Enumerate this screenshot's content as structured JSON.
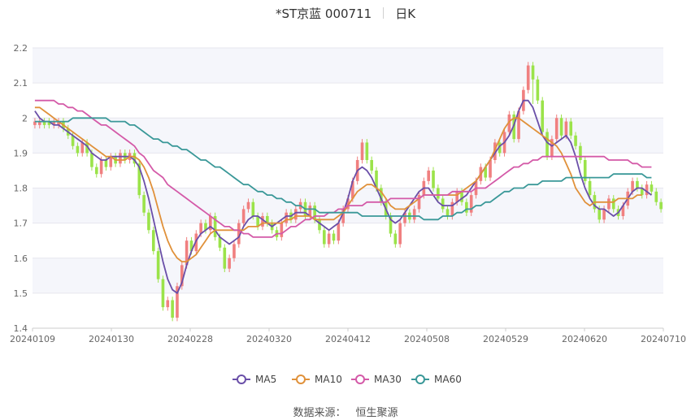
{
  "header": {
    "title": "*ST京蓝 000711",
    "period": "日K"
  },
  "source": {
    "label": "数据来源：",
    "value": "恒生聚源"
  },
  "colors": {
    "up": "#f08080",
    "down": "#9be34a",
    "MA5": "#6a4fa8",
    "MA10": "#e0913a",
    "MA30": "#d45aa8",
    "MA60": "#3a9898"
  },
  "chart_data": {
    "type": "candlestick",
    "title": "*ST京蓝 000711 日K",
    "ylim": [
      1.4,
      2.2
    ],
    "yticks": [
      "1.4",
      "1.5",
      "1.6",
      "1.7",
      "1.8",
      "1.9",
      "2",
      "2.1",
      "2.2"
    ],
    "xtick_labels": [
      "20240109",
      "20240130",
      "20240228",
      "20240320",
      "20240412",
      "20240508",
      "20240529",
      "20240620",
      "20240710"
    ],
    "grid": true,
    "legend_position": "bottom",
    "legend": [
      "MA5",
      "MA10",
      "MA30",
      "MA60"
    ],
    "candles": [
      [
        1.98,
        1.99,
        1.97,
        2.0
      ],
      [
        1.98,
        1.99,
        1.97,
        2.0
      ],
      [
        1.99,
        1.98,
        1.97,
        2.0
      ],
      [
        1.99,
        1.98,
        1.97,
        2.0
      ],
      [
        1.98,
        1.99,
        1.97,
        2.0
      ],
      [
        1.98,
        1.99,
        1.97,
        2.0
      ],
      [
        1.99,
        1.97,
        1.96,
        2.0
      ],
      [
        1.97,
        1.95,
        1.94,
        1.98
      ],
      [
        1.95,
        1.92,
        1.91,
        1.96
      ],
      [
        1.92,
        1.9,
        1.89,
        1.93
      ],
      [
        1.9,
        1.93,
        1.89,
        1.94
      ],
      [
        1.93,
        1.9,
        1.89,
        1.94
      ],
      [
        1.9,
        1.86,
        1.85,
        1.91
      ],
      [
        1.86,
        1.84,
        1.83,
        1.87
      ],
      [
        1.84,
        1.88,
        1.83,
        1.89
      ],
      [
        1.88,
        1.86,
        1.85,
        1.89
      ],
      [
        1.86,
        1.89,
        1.85,
        1.9
      ],
      [
        1.89,
        1.87,
        1.86,
        1.9
      ],
      [
        1.87,
        1.9,
        1.86,
        1.91
      ],
      [
        1.9,
        1.88,
        1.87,
        1.91
      ],
      [
        1.88,
        1.9,
        1.87,
        1.91
      ],
      [
        1.9,
        1.87,
        1.86,
        1.91
      ],
      [
        1.87,
        1.78,
        1.77,
        1.88
      ],
      [
        1.78,
        1.73,
        1.72,
        1.79
      ],
      [
        1.73,
        1.68,
        1.67,
        1.74
      ],
      [
        1.68,
        1.62,
        1.61,
        1.69
      ],
      [
        1.62,
        1.54,
        1.53,
        1.63
      ],
      [
        1.54,
        1.46,
        1.45,
        1.55
      ],
      [
        1.46,
        1.48,
        1.45,
        1.49
      ],
      [
        1.48,
        1.43,
        1.42,
        1.49
      ],
      [
        1.43,
        1.52,
        1.42,
        1.53
      ],
      [
        1.52,
        1.58,
        1.51,
        1.59
      ],
      [
        1.58,
        1.65,
        1.57,
        1.66
      ],
      [
        1.65,
        1.62,
        1.61,
        1.66
      ],
      [
        1.62,
        1.67,
        1.61,
        1.68
      ],
      [
        1.67,
        1.7,
        1.66,
        1.71
      ],
      [
        1.7,
        1.68,
        1.67,
        1.71
      ],
      [
        1.68,
        1.72,
        1.67,
        1.73
      ],
      [
        1.72,
        1.66,
        1.65,
        1.73
      ],
      [
        1.66,
        1.63,
        1.62,
        1.67
      ],
      [
        1.63,
        1.57,
        1.56,
        1.64
      ],
      [
        1.57,
        1.6,
        1.56,
        1.61
      ],
      [
        1.6,
        1.64,
        1.59,
        1.65
      ],
      [
        1.64,
        1.7,
        1.63,
        1.71
      ],
      [
        1.7,
        1.74,
        1.69,
        1.75
      ],
      [
        1.74,
        1.76,
        1.73,
        1.77
      ],
      [
        1.76,
        1.72,
        1.71,
        1.77
      ],
      [
        1.72,
        1.69,
        1.68,
        1.73
      ],
      [
        1.69,
        1.72,
        1.68,
        1.73
      ],
      [
        1.72,
        1.7,
        1.69,
        1.73
      ],
      [
        1.7,
        1.68,
        1.67,
        1.71
      ],
      [
        1.68,
        1.66,
        1.65,
        1.69
      ],
      [
        1.66,
        1.7,
        1.65,
        1.71
      ],
      [
        1.7,
        1.73,
        1.69,
        1.74
      ],
      [
        1.73,
        1.71,
        1.7,
        1.74
      ],
      [
        1.71,
        1.74,
        1.7,
        1.75
      ],
      [
        1.74,
        1.76,
        1.73,
        1.77
      ],
      [
        1.76,
        1.72,
        1.71,
        1.77
      ],
      [
        1.72,
        1.75,
        1.71,
        1.76
      ],
      [
        1.75,
        1.71,
        1.7,
        1.76
      ],
      [
        1.71,
        1.68,
        1.67,
        1.72
      ],
      [
        1.68,
        1.64,
        1.63,
        1.69
      ],
      [
        1.64,
        1.67,
        1.63,
        1.68
      ],
      [
        1.67,
        1.65,
        1.64,
        1.68
      ],
      [
        1.65,
        1.7,
        1.64,
        1.71
      ],
      [
        1.7,
        1.74,
        1.69,
        1.75
      ],
      [
        1.74,
        1.77,
        1.73,
        1.78
      ],
      [
        1.77,
        1.82,
        1.76,
        1.83
      ],
      [
        1.82,
        1.88,
        1.81,
        1.89
      ],
      [
        1.88,
        1.93,
        1.87,
        1.94
      ],
      [
        1.93,
        1.88,
        1.87,
        1.94
      ],
      [
        1.88,
        1.85,
        1.84,
        1.89
      ],
      [
        1.85,
        1.8,
        1.79,
        1.86
      ],
      [
        1.8,
        1.76,
        1.75,
        1.81
      ],
      [
        1.76,
        1.72,
        1.71,
        1.77
      ],
      [
        1.72,
        1.67,
        1.66,
        1.73
      ],
      [
        1.67,
        1.64,
        1.63,
        1.68
      ],
      [
        1.64,
        1.7,
        1.63,
        1.71
      ],
      [
        1.7,
        1.73,
        1.69,
        1.74
      ],
      [
        1.73,
        1.71,
        1.7,
        1.74
      ],
      [
        1.71,
        1.74,
        1.7,
        1.75
      ],
      [
        1.74,
        1.78,
        1.73,
        1.79
      ],
      [
        1.78,
        1.82,
        1.77,
        1.83
      ],
      [
        1.82,
        1.85,
        1.81,
        1.86
      ],
      [
        1.85,
        1.8,
        1.79,
        1.86
      ],
      [
        1.8,
        1.77,
        1.76,
        1.81
      ],
      [
        1.77,
        1.74,
        1.73,
        1.78
      ],
      [
        1.74,
        1.72,
        1.71,
        1.75
      ],
      [
        1.72,
        1.76,
        1.71,
        1.77
      ],
      [
        1.76,
        1.79,
        1.75,
        1.8
      ],
      [
        1.79,
        1.76,
        1.75,
        1.8
      ],
      [
        1.76,
        1.73,
        1.72,
        1.77
      ],
      [
        1.73,
        1.78,
        1.72,
        1.79
      ],
      [
        1.78,
        1.82,
        1.77,
        1.83
      ],
      [
        1.82,
        1.86,
        1.81,
        1.87
      ],
      [
        1.86,
        1.83,
        1.82,
        1.87
      ],
      [
        1.83,
        1.88,
        1.82,
        1.89
      ],
      [
        1.88,
        1.93,
        1.87,
        1.94
      ],
      [
        1.93,
        1.9,
        1.89,
        1.94
      ],
      [
        1.9,
        1.96,
        1.89,
        1.97
      ],
      [
        1.96,
        2.01,
        1.95,
        2.02
      ],
      [
        2.01,
        1.94,
        1.93,
        2.02
      ],
      [
        1.94,
        2.02,
        1.93,
        2.03
      ],
      [
        2.02,
        2.08,
        2.01,
        2.09
      ],
      [
        2.08,
        2.15,
        2.07,
        2.16
      ],
      [
        2.15,
        2.11,
        2.04,
        2.16
      ],
      [
        2.11,
        2.05,
        2.04,
        2.12
      ],
      [
        2.05,
        1.96,
        1.95,
        2.06
      ],
      [
        1.96,
        1.89,
        1.88,
        1.97
      ],
      [
        1.89,
        1.94,
        1.88,
        1.95
      ],
      [
        1.94,
        2.0,
        1.93,
        2.01
      ],
      [
        2.0,
        1.95,
        1.94,
        2.01
      ],
      [
        1.95,
        1.99,
        1.94,
        2.0
      ],
      [
        1.99,
        1.95,
        1.94,
        2.0
      ],
      [
        1.95,
        1.92,
        1.91,
        1.96
      ],
      [
        1.92,
        1.88,
        1.87,
        1.93
      ],
      [
        1.88,
        1.82,
        1.81,
        1.89
      ],
      [
        1.82,
        1.78,
        1.77,
        1.83
      ],
      [
        1.78,
        1.74,
        1.73,
        1.79
      ],
      [
        1.74,
        1.71,
        1.7,
        1.75
      ],
      [
        1.71,
        1.74,
        1.7,
        1.75
      ],
      [
        1.74,
        1.77,
        1.73,
        1.78
      ],
      [
        1.77,
        1.74,
        1.73,
        1.78
      ],
      [
        1.74,
        1.72,
        1.71,
        1.75
      ],
      [
        1.72,
        1.75,
        1.71,
        1.76
      ],
      [
        1.75,
        1.79,
        1.74,
        1.8
      ],
      [
        1.79,
        1.82,
        1.78,
        1.83
      ],
      [
        1.82,
        1.8,
        1.79,
        1.83
      ],
      [
        1.8,
        1.78,
        1.77,
        1.81
      ],
      [
        1.78,
        1.81,
        1.77,
        1.82
      ],
      [
        1.81,
        1.79,
        1.78,
        1.82
      ],
      [
        1.79,
        1.76,
        1.75,
        1.8
      ],
      [
        1.76,
        1.74,
        1.73,
        1.77
      ]
    ],
    "series": [
      {
        "name": "MA5",
        "values": [
          2.02,
          2.0,
          1.99,
          1.99,
          1.98,
          1.98,
          1.97,
          1.96,
          1.95,
          1.94,
          1.93,
          1.92,
          1.9,
          1.89,
          1.88,
          1.88,
          1.89,
          1.89,
          1.89,
          1.89,
          1.89,
          1.88,
          1.86,
          1.82,
          1.77,
          1.71,
          1.65,
          1.59,
          1.54,
          1.51,
          1.5,
          1.53,
          1.58,
          1.62,
          1.65,
          1.67,
          1.68,
          1.69,
          1.68,
          1.66,
          1.65,
          1.64,
          1.65,
          1.66,
          1.69,
          1.71,
          1.72,
          1.72,
          1.71,
          1.7,
          1.69,
          1.7,
          1.71,
          1.72,
          1.72,
          1.73,
          1.73,
          1.73,
          1.72,
          1.71,
          1.7,
          1.69,
          1.68,
          1.69,
          1.7,
          1.73,
          1.77,
          1.82,
          1.85,
          1.86,
          1.85,
          1.83,
          1.8,
          1.77,
          1.74,
          1.71,
          1.7,
          1.71,
          1.73,
          1.75,
          1.77,
          1.79,
          1.8,
          1.8,
          1.78,
          1.76,
          1.75,
          1.75,
          1.75,
          1.76,
          1.77,
          1.78,
          1.8,
          1.82,
          1.84,
          1.86,
          1.88,
          1.9,
          1.92,
          1.93,
          1.95,
          1.98,
          2.02,
          2.05,
          2.05,
          2.03,
          1.99,
          1.95,
          1.93,
          1.92,
          1.93,
          1.94,
          1.95,
          1.93,
          1.89,
          1.84,
          1.8,
          1.77,
          1.75,
          1.74,
          1.74,
          1.73,
          1.72,
          1.73,
          1.75,
          1.77,
          1.79,
          1.8,
          1.8,
          1.79,
          1.78
        ]
      },
      {
        "name": "MA10",
        "values": [
          2.03,
          2.03,
          2.02,
          2.01,
          2.0,
          1.99,
          1.98,
          1.97,
          1.96,
          1.95,
          1.94,
          1.93,
          1.92,
          1.91,
          1.9,
          1.89,
          1.89,
          1.88,
          1.88,
          1.88,
          1.89,
          1.89,
          1.88,
          1.86,
          1.83,
          1.79,
          1.74,
          1.69,
          1.65,
          1.62,
          1.6,
          1.59,
          1.59,
          1.6,
          1.61,
          1.63,
          1.65,
          1.67,
          1.68,
          1.68,
          1.68,
          1.68,
          1.68,
          1.68,
          1.68,
          1.69,
          1.69,
          1.69,
          1.7,
          1.7,
          1.7,
          1.7,
          1.7,
          1.71,
          1.71,
          1.72,
          1.72,
          1.72,
          1.72,
          1.71,
          1.71,
          1.71,
          1.71,
          1.71,
          1.72,
          1.73,
          1.75,
          1.77,
          1.79,
          1.8,
          1.81,
          1.81,
          1.8,
          1.79,
          1.77,
          1.75,
          1.74,
          1.74,
          1.74,
          1.75,
          1.76,
          1.77,
          1.78,
          1.78,
          1.78,
          1.78,
          1.78,
          1.78,
          1.78,
          1.78,
          1.79,
          1.8,
          1.81,
          1.82,
          1.84,
          1.86,
          1.88,
          1.91,
          1.94,
          1.97,
          1.99,
          2.0,
          2.0,
          1.99,
          1.98,
          1.97,
          1.96,
          1.95,
          1.94,
          1.93,
          1.92,
          1.9,
          1.87,
          1.84,
          1.8,
          1.78,
          1.76,
          1.75,
          1.76,
          1.76,
          1.76,
          1.76,
          1.76,
          1.77,
          1.77,
          1.77,
          1.77,
          1.78,
          1.78
        ]
      },
      {
        "name": "MA30",
        "values": [
          2.05,
          2.05,
          2.05,
          2.05,
          2.05,
          2.04,
          2.04,
          2.03,
          2.03,
          2.02,
          2.02,
          2.01,
          2.0,
          1.99,
          1.98,
          1.98,
          1.97,
          1.96,
          1.95,
          1.94,
          1.93,
          1.92,
          1.9,
          1.89,
          1.87,
          1.85,
          1.84,
          1.83,
          1.81,
          1.8,
          1.79,
          1.78,
          1.77,
          1.76,
          1.75,
          1.74,
          1.73,
          1.72,
          1.71,
          1.7,
          1.69,
          1.69,
          1.68,
          1.68,
          1.67,
          1.67,
          1.66,
          1.66,
          1.66,
          1.66,
          1.66,
          1.67,
          1.67,
          1.68,
          1.69,
          1.69,
          1.7,
          1.71,
          1.71,
          1.72,
          1.72,
          1.72,
          1.73,
          1.73,
          1.74,
          1.74,
          1.75,
          1.75,
          1.75,
          1.75,
          1.76,
          1.76,
          1.76,
          1.76,
          1.76,
          1.77,
          1.77,
          1.77,
          1.77,
          1.77,
          1.77,
          1.77,
          1.78,
          1.78,
          1.78,
          1.78,
          1.78,
          1.78,
          1.79,
          1.79,
          1.79,
          1.79,
          1.79,
          1.8,
          1.8,
          1.8,
          1.81,
          1.82,
          1.83,
          1.84,
          1.85,
          1.86,
          1.86,
          1.87,
          1.87,
          1.88,
          1.88,
          1.89,
          1.89,
          1.89,
          1.89,
          1.89,
          1.89,
          1.89,
          1.89,
          1.89,
          1.89,
          1.89,
          1.89,
          1.89,
          1.89,
          1.88,
          1.88,
          1.88,
          1.88,
          1.88,
          1.87,
          1.87,
          1.86,
          1.86,
          1.86
        ]
      },
      {
        "name": "MA60",
        "values": [
          1.99,
          1.99,
          1.99,
          1.99,
          1.99,
          1.99,
          1.99,
          1.99,
          2.0,
          2.0,
          2.0,
          2.0,
          2.0,
          2.0,
          2.0,
          2.0,
          1.99,
          1.99,
          1.99,
          1.99,
          1.98,
          1.98,
          1.97,
          1.96,
          1.95,
          1.94,
          1.94,
          1.93,
          1.93,
          1.92,
          1.92,
          1.91,
          1.91,
          1.9,
          1.89,
          1.88,
          1.88,
          1.87,
          1.86,
          1.86,
          1.85,
          1.84,
          1.83,
          1.82,
          1.81,
          1.81,
          1.8,
          1.79,
          1.79,
          1.78,
          1.78,
          1.77,
          1.77,
          1.76,
          1.76,
          1.75,
          1.75,
          1.74,
          1.74,
          1.74,
          1.73,
          1.73,
          1.73,
          1.73,
          1.73,
          1.73,
          1.73,
          1.73,
          1.73,
          1.72,
          1.72,
          1.72,
          1.72,
          1.72,
          1.72,
          1.72,
          1.72,
          1.72,
          1.72,
          1.72,
          1.72,
          1.72,
          1.71,
          1.71,
          1.71,
          1.71,
          1.72,
          1.72,
          1.72,
          1.73,
          1.73,
          1.74,
          1.74,
          1.75,
          1.75,
          1.76,
          1.76,
          1.77,
          1.78,
          1.79,
          1.79,
          1.8,
          1.8,
          1.8,
          1.81,
          1.81,
          1.81,
          1.82,
          1.82,
          1.82,
          1.82,
          1.82,
          1.83,
          1.83,
          1.83,
          1.83,
          1.83,
          1.83,
          1.83,
          1.83,
          1.83,
          1.83,
          1.84,
          1.84,
          1.84,
          1.84,
          1.84,
          1.84,
          1.84,
          1.83,
          1.83
        ]
      }
    ]
  }
}
